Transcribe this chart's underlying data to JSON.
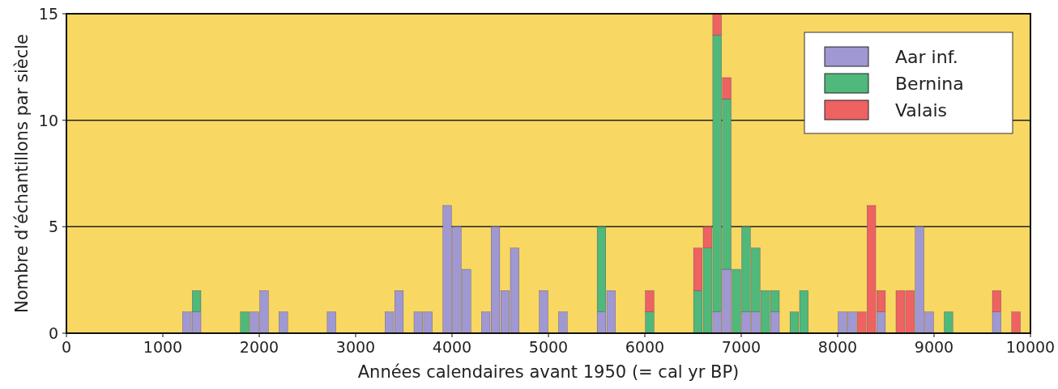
{
  "chart_data": {
    "type": "bar",
    "stacked": true,
    "xlabel": "Années calendaires avant 1950 (= cal yr BP)",
    "ylabel": "Nombre d’échantillons par siècle",
    "x": [
      1250,
      1350,
      1850,
      1950,
      2050,
      2250,
      2750,
      3350,
      3450,
      3650,
      3750,
      3950,
      4050,
      4150,
      4350,
      4450,
      4550,
      4650,
      4950,
      5150,
      5550,
      5650,
      6050,
      6550,
      6650,
      6750,
      6850,
      6950,
      7050,
      7150,
      7250,
      7350,
      7550,
      7650,
      8050,
      8150,
      8250,
      8350,
      8450,
      8650,
      8750,
      8850,
      8950,
      9150,
      9650,
      9850
    ],
    "series": [
      {
        "name": "Aar inf.",
        "color": "#9f98d2",
        "values": [
          1,
          1,
          null,
          1,
          2,
          1,
          1,
          1,
          2,
          1,
          1,
          6,
          5,
          3,
          1,
          5,
          2,
          4,
          2,
          1,
          1,
          2,
          null,
          null,
          null,
          1,
          3,
          null,
          1,
          1,
          null,
          1,
          null,
          null,
          1,
          1,
          null,
          null,
          1,
          null,
          null,
          5,
          1,
          null,
          1,
          null
        ]
      },
      {
        "name": "Bernina",
        "color": "#4fb87a",
        "values": [
          null,
          1,
          1,
          null,
          null,
          null,
          null,
          null,
          null,
          null,
          null,
          null,
          null,
          null,
          null,
          null,
          null,
          null,
          null,
          null,
          4,
          null,
          1,
          2,
          4,
          13,
          8,
          3,
          4,
          3,
          2,
          1,
          1,
          2,
          null,
          null,
          null,
          null,
          null,
          null,
          null,
          null,
          null,
          1,
          null,
          null
        ]
      },
      {
        "name": "Valais",
        "color": "#ee6262",
        "values": [
          null,
          null,
          null,
          null,
          null,
          null,
          null,
          null,
          null,
          null,
          null,
          null,
          null,
          null,
          null,
          null,
          null,
          null,
          null,
          null,
          null,
          null,
          1,
          2,
          1,
          1,
          1,
          null,
          null,
          null,
          null,
          null,
          null,
          null,
          null,
          null,
          1,
          6,
          1,
          2,
          2,
          null,
          null,
          null,
          1,
          1
        ]
      }
    ],
    "xlim": [
      0,
      10000
    ],
    "xticks": [
      0,
      1000,
      2000,
      3000,
      4000,
      5000,
      6000,
      7000,
      8000,
      9000,
      10000
    ],
    "ylim": [
      0,
      15
    ],
    "yticks": [
      0,
      5,
      10,
      15
    ],
    "grid": "y",
    "legend": "top right"
  }
}
